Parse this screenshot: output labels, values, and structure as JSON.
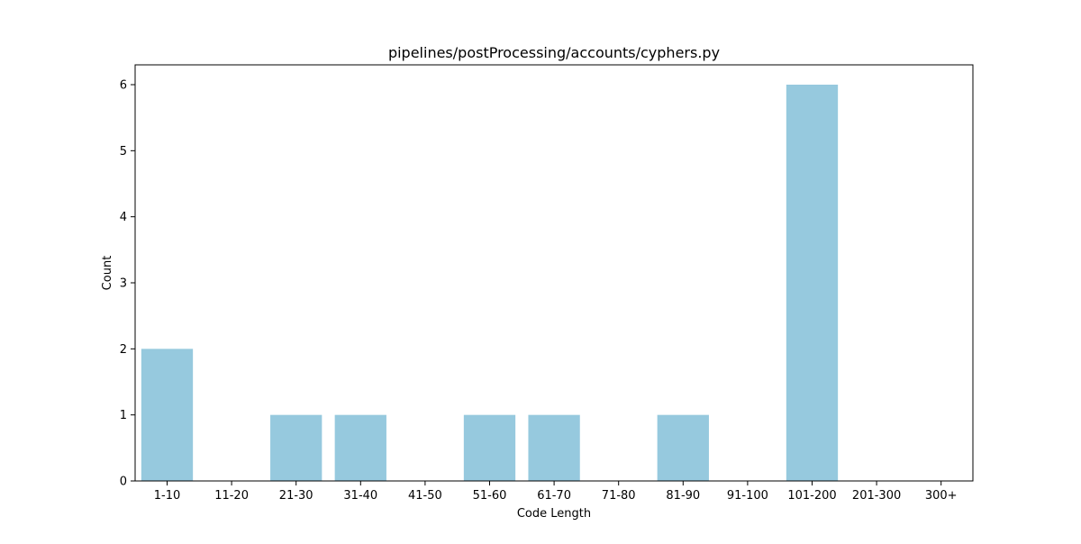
{
  "chart_data": {
    "type": "bar",
    "title": "pipelines/postProcessing/accounts/cyphers.py",
    "xlabel": "Code Length",
    "ylabel": "Count",
    "categories": [
      "1-10",
      "11-20",
      "21-30",
      "31-40",
      "41-50",
      "51-60",
      "61-70",
      "71-80",
      "81-90",
      "91-100",
      "101-200",
      "201-300",
      "300+"
    ],
    "values": [
      2,
      0,
      1,
      1,
      0,
      1,
      1,
      0,
      1,
      0,
      6,
      0,
      0
    ],
    "yticks": [
      "0",
      "1",
      "2",
      "3",
      "4",
      "5",
      "6"
    ],
    "ylim": [
      0,
      6.3
    ],
    "bar_color": "#96c9de",
    "grid": false,
    "legend": "none"
  }
}
